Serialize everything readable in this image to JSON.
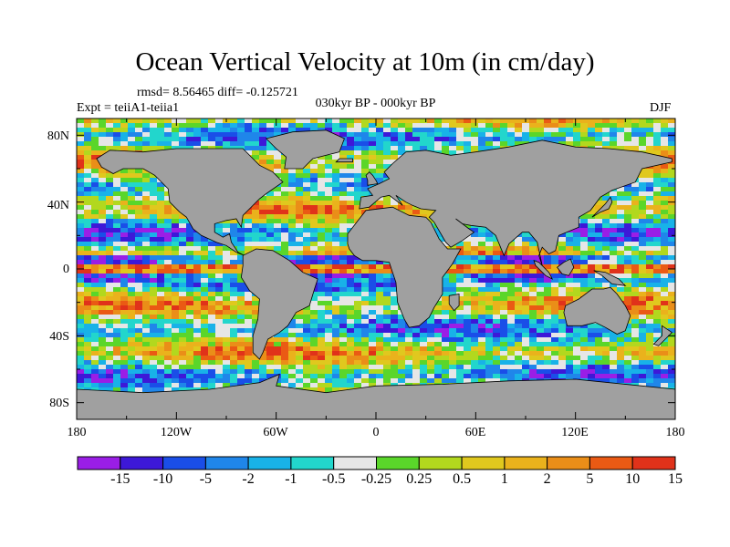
{
  "title": "Ocean Vertical Velocity at 10m (in cm/day)",
  "stats": "rmsd= 8.56465 diff= -0.125721",
  "expt": "Expt = teiiA1-teiia1",
  "period": "030kyr BP - 000kyr BP",
  "season": "DJF",
  "lat_labels": [
    "80N",
    "40N",
    "0",
    "40S",
    "80S"
  ],
  "lon_labels": [
    "180",
    "120W",
    "60W",
    "0",
    "60E",
    "120E",
    "180"
  ],
  "colorbar": {
    "colors": [
      "#9a1ee6",
      "#3d18d8",
      "#1a4ee8",
      "#1f86ea",
      "#18b2e8",
      "#22d6cc",
      "#e6e6e6",
      "#5ad62a",
      "#b2d81e",
      "#e0c81e",
      "#eab21c",
      "#ea8e18",
      "#ea5a14",
      "#e0321a"
    ],
    "labels": [
      "-15",
      "-10",
      "-5",
      "-2",
      "-1",
      "-0.5",
      "-0.25",
      "0.25",
      "0.5",
      "1",
      "2",
      "5",
      "10",
      "15"
    ]
  },
  "land_color": "#a0a0a0"
}
